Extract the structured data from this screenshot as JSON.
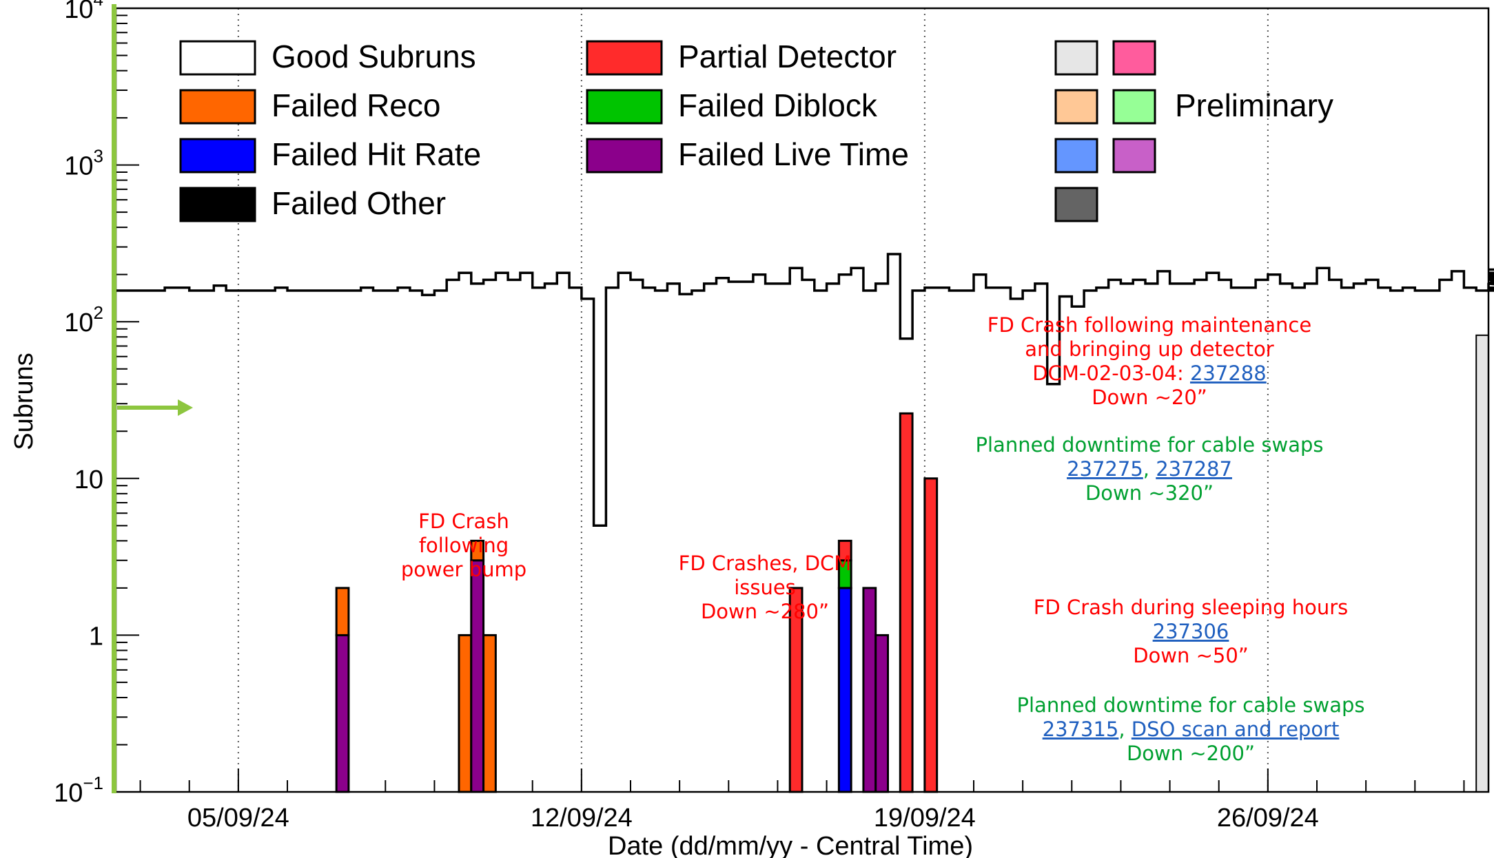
{
  "chart_data": {
    "type": "histogram",
    "title": "",
    "xlabel": "Date (dd/mm/yy - Central Time)",
    "ylabel": "Subruns",
    "yscale": "log",
    "ylim": [
      0.1,
      10000
    ],
    "y_ticks": [
      {
        "label": "10",
        "exp": "−1",
        "value": 0.1
      },
      {
        "label": "1",
        "exp": "",
        "value": 1
      },
      {
        "label": "10",
        "exp": "",
        "value": 10
      },
      {
        "label": "10",
        "exp": "2",
        "value": 100
      },
      {
        "label": "10",
        "exp": "3",
        "value": 1000
      },
      {
        "label": "10",
        "exp": "4",
        "value": 10000
      }
    ],
    "x_range": [
      "2024-09-02 12:00",
      "2024-09-30 12:00"
    ],
    "bin_width_hours": 6,
    "x_ticks": [
      {
        "label": "05/09/24",
        "date": "2024-09-05 00:00"
      },
      {
        "label": "12/09/24",
        "date": "2024-09-12 00:00"
      },
      {
        "label": "19/09/24",
        "date": "2024-09-19 00:00"
      },
      {
        "label": "26/09/24",
        "date": "2024-09-26 00:00"
      }
    ],
    "grid": "vertical dotted at date ticks",
    "good_subruns": [
      158,
      158,
      158,
      158,
      165,
      165,
      158,
      158,
      170,
      158,
      158,
      158,
      158,
      165,
      158,
      158,
      158,
      158,
      158,
      158,
      165,
      158,
      158,
      165,
      158,
      148,
      158,
      185,
      205,
      175,
      185,
      205,
      185,
      205,
      165,
      175,
      205,
      165,
      140,
      5,
      165,
      205,
      185,
      165,
      158,
      175,
      150,
      158,
      175,
      190,
      180,
      180,
      200,
      175,
      175,
      220,
      185,
      158,
      175,
      200,
      220,
      158,
      175,
      270,
      78,
      158,
      165,
      165,
      158,
      158,
      200,
      165,
      165,
      140,
      158,
      175,
      40,
      145,
      125,
      158,
      165,
      185,
      175,
      185,
      175,
      210,
      175,
      175,
      185,
      205,
      185,
      165,
      165,
      185,
      200,
      175,
      165,
      175,
      220,
      185,
      165,
      175,
      185,
      165,
      158,
      165,
      158,
      158,
      185,
      210,
      165,
      158,
      175,
      195,
      175,
      165,
      158,
      175,
      200,
      175,
      175,
      185,
      185,
      175,
      175,
      165,
      158,
      185,
      205,
      175,
      175,
      185,
      190,
      200,
      175,
      175,
      165,
      175,
      190,
      200,
      205,
      200,
      175,
      185,
      190,
      205,
      175,
      175,
      185,
      205,
      165,
      158,
      185,
      158,
      158,
      158,
      158,
      160,
      185,
      215,
      205
    ],
    "failed_bins": [
      {
        "start": "2024-09-07 00:00",
        "failed_live_time": 1,
        "failed_reco": 1
      },
      {
        "start": "2024-09-09 12:00",
        "failed_reco": 1
      },
      {
        "start": "2024-09-09 18:00",
        "failed_live_time": 3,
        "failed_reco": 1
      },
      {
        "start": "2024-09-10 00:00",
        "failed_reco": 1
      },
      {
        "start": "2024-09-16 06:00",
        "partial_detector": 2
      },
      {
        "start": "2024-09-17 06:00",
        "failed_hit_rate": 2,
        "failed_diblock": 1,
        "partial_detector": 1
      },
      {
        "start": "2024-09-17 18:00",
        "failed_live_time": 2
      },
      {
        "start": "2024-09-18 00:00",
        "failed_live_time": 1
      },
      {
        "start": "2024-09-18 12:00",
        "partial_detector": 26
      },
      {
        "start": "2024-09-19 00:00",
        "partial_detector": 10
      }
    ],
    "last_bin_grey": {
      "start": "2024-09-30 06:00",
      "value": 82
    },
    "legend": {
      "placement": "top",
      "entries": [
        {
          "name": "Good Subruns",
          "color": "#ffffff"
        },
        {
          "name": "Partial Detector",
          "color": "#ff2b2b"
        },
        {
          "name": "Failed Reco",
          "color": "#ff6600"
        },
        {
          "name": "Failed Diblock",
          "color": "#00c400"
        },
        {
          "name": "Failed Hit Rate",
          "color": "#0000ff"
        },
        {
          "name": "Failed Live Time",
          "color": "#8b008b"
        },
        {
          "name": "Failed Other",
          "color": "#000000"
        }
      ],
      "extra_swatches": [
        "#e6e6e6",
        "#ff5c9d",
        "#ffc896",
        "#96ff96",
        "#6496ff",
        "#c860c8",
        "#646464"
      ],
      "extra_label": "Preliminary"
    },
    "annotations": [
      {
        "lines": [
          [
            {
              "t": "FD Crash"
            }
          ],
          [
            {
              "t": "following"
            }
          ],
          [
            {
              "t": "power bump"
            }
          ]
        ],
        "color": "#ff0000"
      },
      {
        "lines": [
          [
            {
              "t": "FD Crashes, DCM"
            }
          ],
          [
            {
              "t": "issues"
            }
          ],
          [
            {
              "t": "Down ~280”"
            }
          ]
        ],
        "color": "#ff0000"
      },
      {
        "lines": [
          [
            {
              "t": "FD Crash following maintenance"
            }
          ],
          [
            {
              "t": "and bringing up detector"
            }
          ],
          [
            {
              "t": "DCM-02-03-04: "
            },
            {
              "t": "237288",
              "link": true
            }
          ],
          [
            {
              "t": "Down ~20”"
            }
          ]
        ],
        "color": "#ff0000"
      },
      {
        "lines": [
          [
            {
              "t": "Planned downtime for cable swaps"
            }
          ],
          [
            {
              "t": "237275",
              "link": true
            },
            {
              "t": ", "
            },
            {
              "t": "237287",
              "link": true
            }
          ],
          [
            {
              "t": "Down ~320”"
            }
          ]
        ],
        "color": "#00a030"
      },
      {
        "lines": [
          [
            {
              "t": "FD Crash during sleeping hours"
            }
          ],
          [
            {
              "t": "237306",
              "link": true
            }
          ],
          [
            {
              "t": "Down ~50”"
            }
          ]
        ],
        "color": "#ff0000"
      },
      {
        "lines": [
          [
            {
              "t": "Planned downtime for cable swaps"
            }
          ],
          [
            {
              "t": "237315",
              "link": true
            },
            {
              "t": ", "
            },
            {
              "t": "DSO scan and report",
              "link": true
            }
          ],
          [
            {
              "t": "Down ~200”"
            }
          ]
        ],
        "color": "#00a030"
      }
    ],
    "link_color": "#1f5fbf",
    "marker_color": "#8dc63f"
  }
}
